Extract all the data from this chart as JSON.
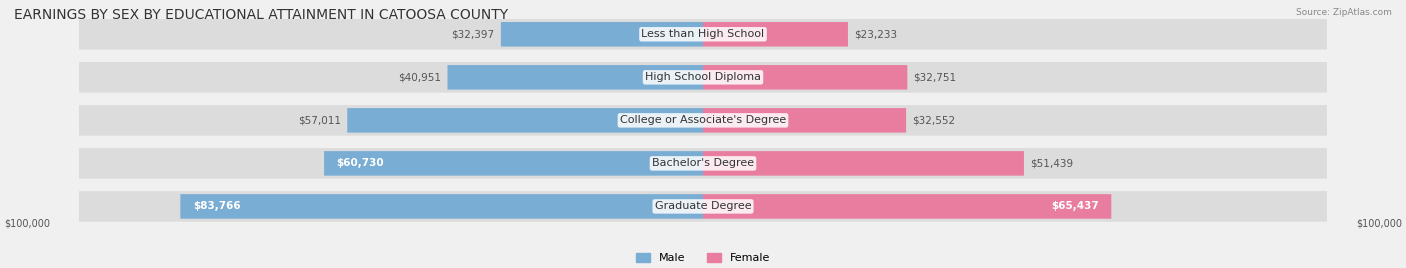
{
  "title": "EARNINGS BY SEX BY EDUCATIONAL ATTAINMENT IN CATOOSA COUNTY",
  "source": "Source: ZipAtlas.com",
  "categories": [
    "Less than High School",
    "High School Diploma",
    "College or Associate's Degree",
    "Bachelor's Degree",
    "Graduate Degree"
  ],
  "male_values": [
    32397,
    40951,
    57011,
    60730,
    83766
  ],
  "female_values": [
    23233,
    32751,
    32552,
    51439,
    65437
  ],
  "max_value": 100000,
  "male_color": "#7aadd4",
  "female_color": "#e87da0",
  "male_label": "Male",
  "female_label": "Female",
  "background_color": "#f0f0f0",
  "bar_background": "#e0e0e0",
  "title_fontsize": 10,
  "label_fontsize": 8,
  "value_fontsize": 7.5,
  "axis_label": "$100,000"
}
